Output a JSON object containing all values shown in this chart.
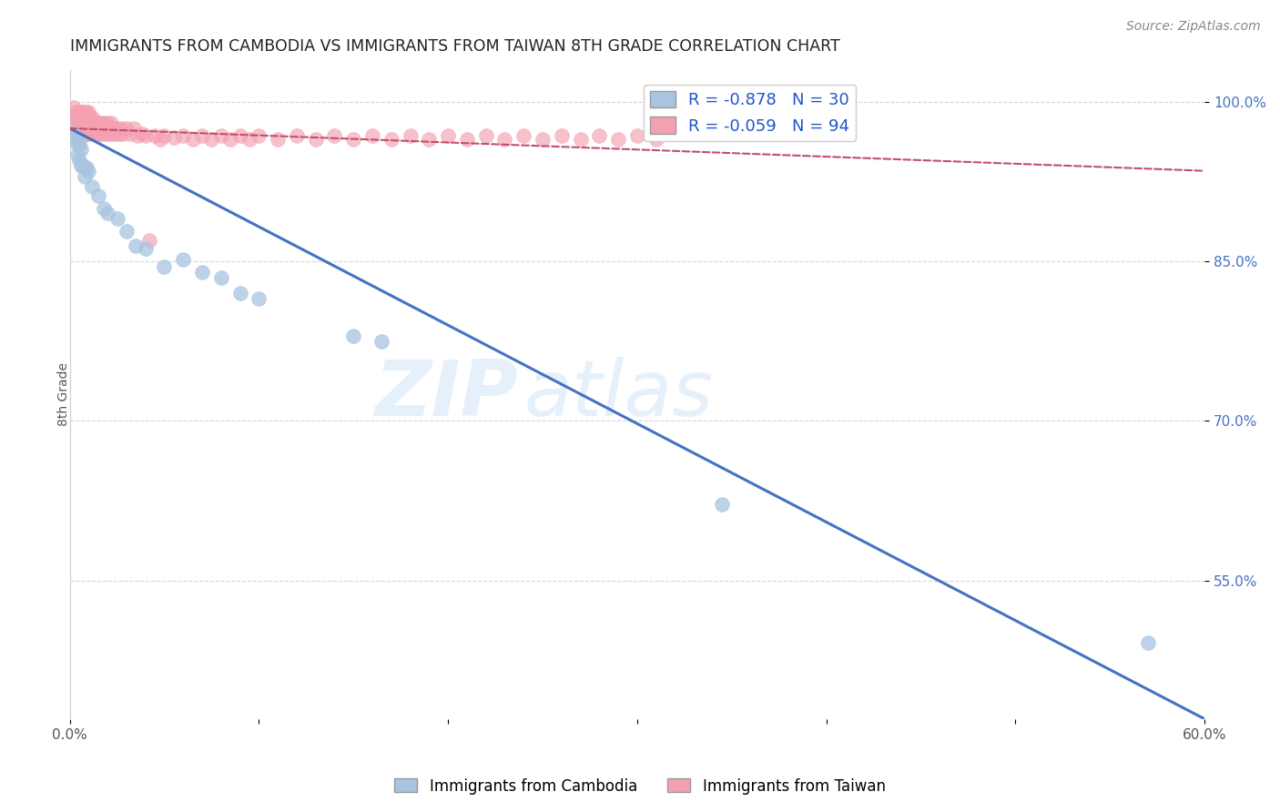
{
  "title": "IMMIGRANTS FROM CAMBODIA VS IMMIGRANTS FROM TAIWAN 8TH GRADE CORRELATION CHART",
  "source": "Source: ZipAtlas.com",
  "ylabel": "8th Grade",
  "xlim": [
    0.0,
    0.6
  ],
  "ylim": [
    0.42,
    1.03
  ],
  "yticks": [
    0.55,
    0.7,
    0.85,
    1.0
  ],
  "ytick_labels": [
    "55.0%",
    "70.0%",
    "85.0%",
    "100.0%"
  ],
  "xtick_labels": [
    "0.0%",
    "",
    "",
    "",
    "",
    "",
    "60.0%"
  ],
  "legend_R_cambodia": "-0.878",
  "legend_N_cambodia": "30",
  "legend_R_taiwan": "-0.059",
  "legend_N_taiwan": "94",
  "cambodia_color": "#a8c4e0",
  "taiwan_color": "#f4a0b0",
  "trendline_cambodia_color": "#4472c4",
  "trendline_taiwan_color": "#c0506a",
  "background_color": "#ffffff",
  "grid_color": "#cccccc",
  "watermark_zip": "ZIP",
  "watermark_atlas": "atlas",
  "cam_trend_x0": 0.0,
  "cam_trend_y0": 0.975,
  "cam_trend_x1": 0.6,
  "cam_trend_y1": 0.42,
  "tw_trend_x0": 0.0,
  "tw_trend_y0": 0.975,
  "tw_trend_x1": 0.6,
  "tw_trend_y1": 0.935,
  "cambodia_x": [
    0.002,
    0.003,
    0.004,
    0.004,
    0.005,
    0.005,
    0.006,
    0.006,
    0.007,
    0.008,
    0.009,
    0.01,
    0.012,
    0.015,
    0.018,
    0.02,
    0.025,
    0.03,
    0.035,
    0.04,
    0.05,
    0.06,
    0.07,
    0.08,
    0.09,
    0.1,
    0.15,
    0.165,
    0.345,
    0.57
  ],
  "cambodia_y": [
    0.97,
    0.965,
    0.96,
    0.95,
    0.96,
    0.945,
    0.955,
    0.94,
    0.94,
    0.93,
    0.938,
    0.935,
    0.92,
    0.912,
    0.9,
    0.895,
    0.89,
    0.878,
    0.865,
    0.862,
    0.845,
    0.852,
    0.84,
    0.835,
    0.82,
    0.815,
    0.78,
    0.775,
    0.622,
    0.492
  ],
  "taiwan_x": [
    0.002,
    0.002,
    0.003,
    0.003,
    0.003,
    0.004,
    0.004,
    0.004,
    0.005,
    0.005,
    0.005,
    0.006,
    0.006,
    0.006,
    0.007,
    0.007,
    0.007,
    0.008,
    0.008,
    0.008,
    0.009,
    0.009,
    0.009,
    0.01,
    0.01,
    0.01,
    0.011,
    0.011,
    0.012,
    0.012,
    0.013,
    0.013,
    0.014,
    0.014,
    0.015,
    0.015,
    0.016,
    0.016,
    0.017,
    0.018,
    0.018,
    0.019,
    0.02,
    0.02,
    0.021,
    0.022,
    0.022,
    0.023,
    0.024,
    0.025,
    0.026,
    0.027,
    0.028,
    0.03,
    0.032,
    0.034,
    0.036,
    0.038,
    0.04,
    0.042,
    0.045,
    0.048,
    0.05,
    0.055,
    0.06,
    0.065,
    0.07,
    0.075,
    0.08,
    0.085,
    0.09,
    0.095,
    0.1,
    0.11,
    0.12,
    0.13,
    0.14,
    0.15,
    0.16,
    0.17,
    0.18,
    0.19,
    0.2,
    0.21,
    0.22,
    0.23,
    0.24,
    0.25,
    0.26,
    0.27,
    0.28,
    0.29,
    0.3,
    0.31
  ],
  "taiwan_y": [
    0.995,
    0.985,
    0.99,
    0.98,
    0.97,
    0.985,
    0.975,
    0.965,
    0.99,
    0.98,
    0.97,
    0.99,
    0.98,
    0.97,
    0.99,
    0.98,
    0.97,
    0.99,
    0.98,
    0.97,
    0.99,
    0.98,
    0.97,
    0.99,
    0.98,
    0.97,
    0.985,
    0.975,
    0.985,
    0.975,
    0.98,
    0.97,
    0.98,
    0.97,
    0.98,
    0.97,
    0.98,
    0.97,
    0.975,
    0.98,
    0.97,
    0.975,
    0.98,
    0.97,
    0.975,
    0.98,
    0.97,
    0.975,
    0.97,
    0.975,
    0.97,
    0.975,
    0.97,
    0.975,
    0.97,
    0.975,
    0.968,
    0.97,
    0.968,
    0.87,
    0.968,
    0.965,
    0.968,
    0.966,
    0.968,
    0.965,
    0.968,
    0.965,
    0.968,
    0.965,
    0.968,
    0.965,
    0.968,
    0.965,
    0.968,
    0.965,
    0.968,
    0.965,
    0.968,
    0.965,
    0.968,
    0.965,
    0.968,
    0.965,
    0.968,
    0.965,
    0.968,
    0.965,
    0.968,
    0.965,
    0.968,
    0.965,
    0.968,
    0.965
  ]
}
